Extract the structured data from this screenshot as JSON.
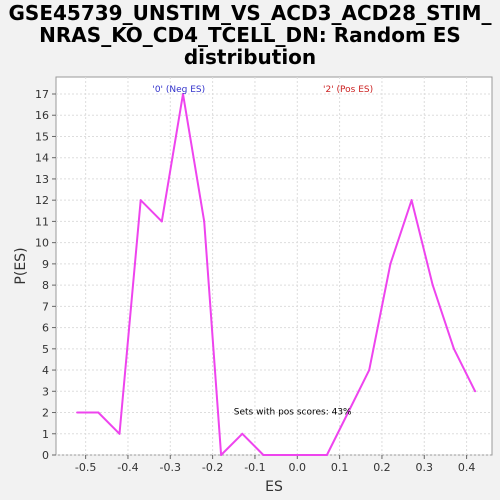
{
  "chart_data": {
    "type": "line",
    "title_lines": [
      "GSE45739_UNSTIM_VS_ACD3_ACD28_STIM_",
      "NRAS_KO_CD4_TCELL_DN: Random ES",
      "distribution"
    ],
    "xlabel": "ES",
    "ylabel": "P(ES)",
    "xlim": [
      -0.57,
      0.46
    ],
    "ylim": [
      0,
      17.8
    ],
    "x_ticks": [
      -0.5,
      -0.4,
      -0.3,
      -0.2,
      -0.1,
      0.0,
      0.1,
      0.2,
      0.3,
      0.4
    ],
    "x_tick_labels": [
      "-0.5",
      "-0.4",
      "-0.3",
      "-0.2",
      "-0.1",
      "0.0",
      "0.1",
      "0.2",
      "0.3",
      "0.4"
    ],
    "y_ticks": [
      0,
      1,
      2,
      3,
      4,
      5,
      6,
      7,
      8,
      9,
      10,
      11,
      12,
      13,
      14,
      15,
      16,
      17
    ],
    "y_tick_labels": [
      "0",
      "1",
      "2",
      "3",
      "4",
      "5",
      "6",
      "7",
      "8",
      "9",
      "10",
      "11",
      "12",
      "13",
      "14",
      "15",
      "16",
      "17"
    ],
    "grid": true,
    "series": [
      {
        "color": "#ee44ee",
        "x": [
          -0.52,
          -0.47,
          -0.42,
          -0.37,
          -0.32,
          -0.27,
          -0.22,
          -0.18,
          -0.13,
          -0.08,
          -0.03,
          0.02,
          0.07,
          0.12,
          0.17,
          0.22,
          0.27,
          0.32,
          0.37,
          0.42
        ],
        "y": [
          2,
          2,
          1,
          12,
          11,
          17,
          11,
          0,
          1,
          0,
          0,
          0,
          0,
          2,
          4,
          9,
          12,
          8,
          5,
          3
        ]
      }
    ],
    "annotations": {
      "neg_label": "'0' (Neg ES)",
      "neg_color": "#3333cc",
      "pos_label": "'2' (Pos ES)",
      "pos_color": "#cc2222",
      "pos_scores": "Sets with pos scores: 43%"
    }
  }
}
